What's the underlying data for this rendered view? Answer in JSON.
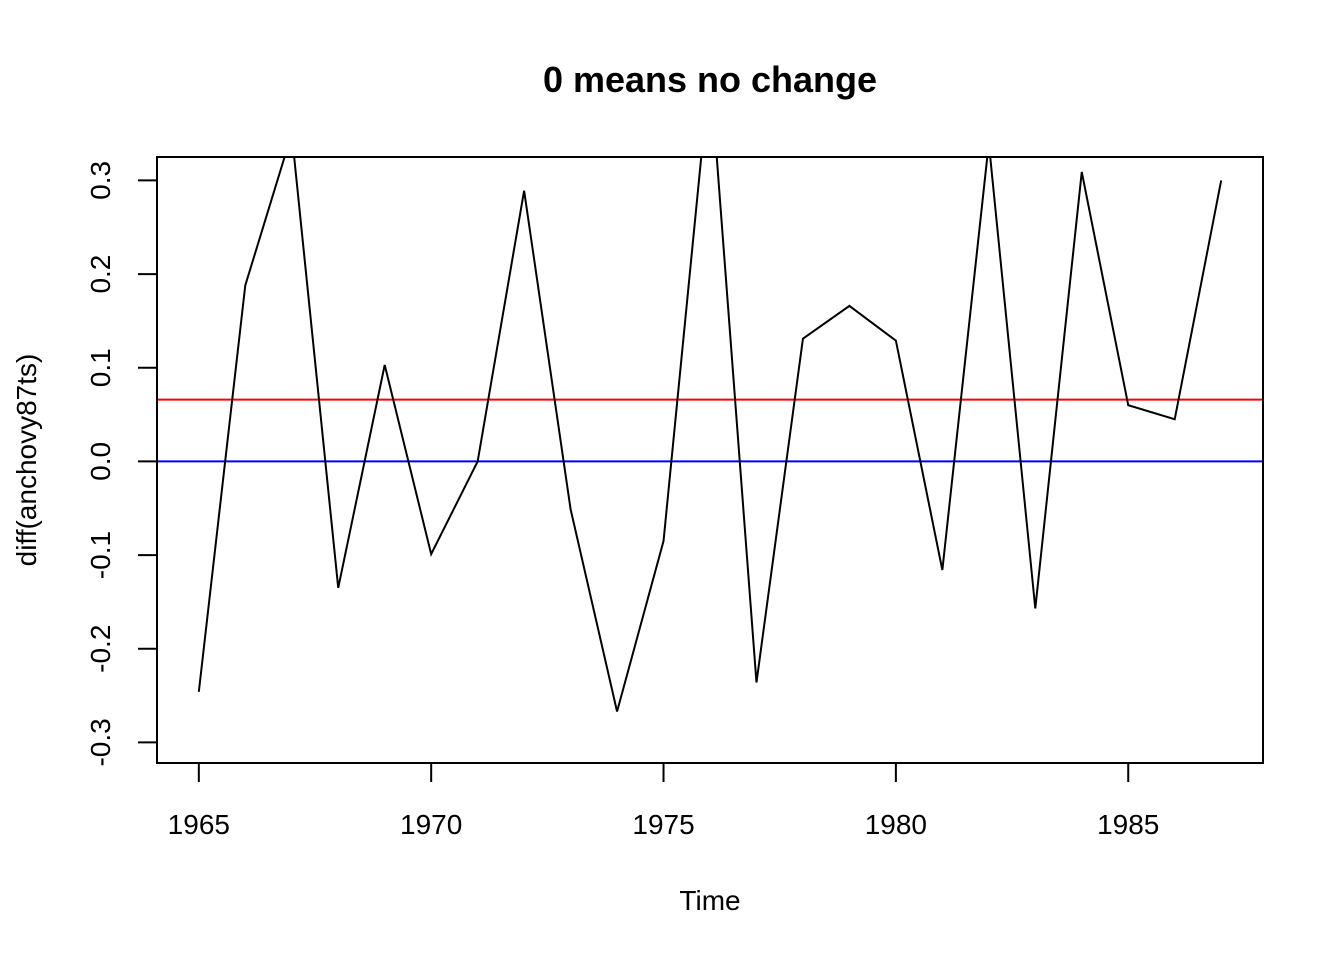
{
  "chart_data": {
    "type": "line",
    "title": "0 means no change",
    "xlabel": "Time",
    "ylabel": "diff(anchovy87ts)",
    "xlim": [
      1964.1,
      1987.9
    ],
    "ylim": [
      -0.322,
      0.325
    ],
    "x_ticks": [
      1965,
      1970,
      1975,
      1980,
      1985
    ],
    "y_ticks": [
      -0.3,
      -0.2,
      -0.1,
      0.0,
      0.1,
      0.2,
      0.3
    ],
    "x_tick_labels": [
      "1965",
      "1970",
      "1975",
      "1980",
      "1985"
    ],
    "y_tick_labels": [
      "-0.3",
      "-0.2",
      "-0.1",
      "0.0",
      "0.1",
      "0.2",
      "0.3"
    ],
    "grid": false,
    "series": [
      {
        "color": "#000000",
        "x": [
          1965,
          1966,
          1967,
          1968,
          1969,
          1970,
          1971,
          1972,
          1973,
          1974,
          1975,
          1976,
          1977,
          1978,
          1979,
          1980,
          1981,
          1982,
          1983,
          1984,
          1985,
          1986,
          1987
        ],
        "values": [
          -0.246,
          0.188,
          0.35,
          -0.135,
          0.103,
          -0.099,
          0.0,
          0.289,
          -0.051,
          -0.267,
          -0.085,
          0.42,
          -0.236,
          0.131,
          0.166,
          0.129,
          -0.116,
          0.34,
          -0.157,
          0.309,
          0.06,
          0.045,
          0.3
        ]
      }
    ],
    "reference_lines": [
      {
        "y": 0.066,
        "color": "#ff0000"
      },
      {
        "y": 0.0,
        "color": "#0000ff"
      }
    ]
  }
}
